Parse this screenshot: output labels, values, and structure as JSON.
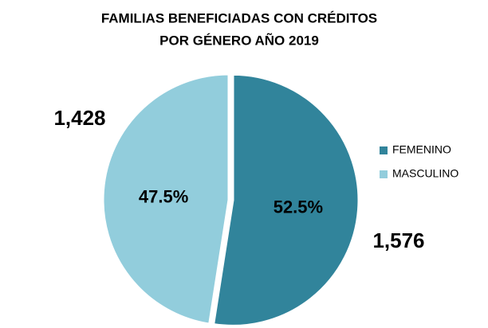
{
  "chart_data": {
    "type": "pie",
    "title": [
      "FAMILIAS BENEFICIADAS CON CRÉDITOS",
      "POR GÉNERO AÑO 2019"
    ],
    "categories": [
      "FEMENINO",
      "MASCULINO"
    ],
    "values": [
      1576,
      1428
    ],
    "value_labels": [
      "1,576",
      "1,428"
    ],
    "percentages": [
      52.5,
      47.5
    ],
    "percentage_labels": [
      "52.5%",
      "47.5%"
    ],
    "colors": [
      "#31849b",
      "#92cddc"
    ],
    "legend": "right"
  }
}
